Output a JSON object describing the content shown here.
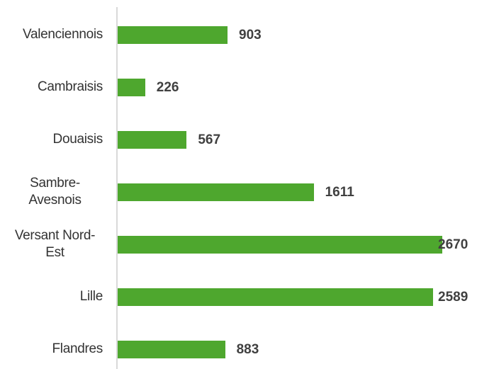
{
  "chart_data": {
    "type": "bar",
    "orientation": "horizontal",
    "categories": [
      "Valenciennois",
      "Cambraisis",
      "Douaisis",
      "Sambre-Avesnois",
      "Versant Nord-Est",
      "Lille",
      "Flandres"
    ],
    "values": [
      903,
      226,
      567,
      1611,
      2670,
      2589,
      883
    ],
    "color": "#4ea72e"
  }
}
